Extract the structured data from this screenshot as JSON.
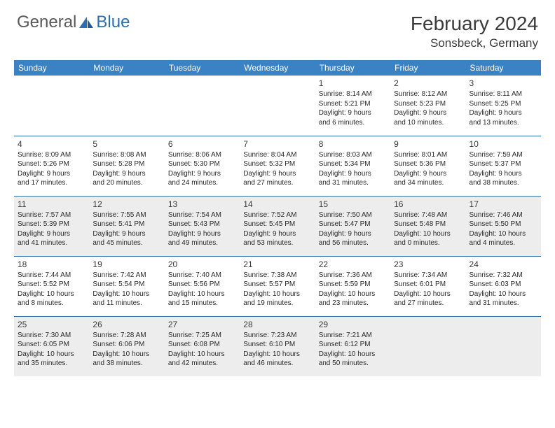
{
  "logo": {
    "general": "General",
    "blue": "Blue"
  },
  "title": "February 2024",
  "location": "Sonsbeck, Germany",
  "colors": {
    "header_bg": "#3b82c4",
    "header_text": "#ffffff",
    "cell_border": "#2b6fb0",
    "shaded_bg": "#ededed",
    "logo_gray": "#5a5a5a",
    "logo_blue": "#2b6fb0"
  },
  "weekdays": [
    "Sunday",
    "Monday",
    "Tuesday",
    "Wednesday",
    "Thursday",
    "Friday",
    "Saturday"
  ],
  "weeks": [
    [
      null,
      null,
      null,
      null,
      {
        "n": "1",
        "sr": "Sunrise: 8:14 AM",
        "ss": "Sunset: 5:21 PM",
        "d1": "Daylight: 9 hours",
        "d2": "and 6 minutes."
      },
      {
        "n": "2",
        "sr": "Sunrise: 8:12 AM",
        "ss": "Sunset: 5:23 PM",
        "d1": "Daylight: 9 hours",
        "d2": "and 10 minutes."
      },
      {
        "n": "3",
        "sr": "Sunrise: 8:11 AM",
        "ss": "Sunset: 5:25 PM",
        "d1": "Daylight: 9 hours",
        "d2": "and 13 minutes."
      }
    ],
    [
      {
        "n": "4",
        "sr": "Sunrise: 8:09 AM",
        "ss": "Sunset: 5:26 PM",
        "d1": "Daylight: 9 hours",
        "d2": "and 17 minutes."
      },
      {
        "n": "5",
        "sr": "Sunrise: 8:08 AM",
        "ss": "Sunset: 5:28 PM",
        "d1": "Daylight: 9 hours",
        "d2": "and 20 minutes."
      },
      {
        "n": "6",
        "sr": "Sunrise: 8:06 AM",
        "ss": "Sunset: 5:30 PM",
        "d1": "Daylight: 9 hours",
        "d2": "and 24 minutes."
      },
      {
        "n": "7",
        "sr": "Sunrise: 8:04 AM",
        "ss": "Sunset: 5:32 PM",
        "d1": "Daylight: 9 hours",
        "d2": "and 27 minutes."
      },
      {
        "n": "8",
        "sr": "Sunrise: 8:03 AM",
        "ss": "Sunset: 5:34 PM",
        "d1": "Daylight: 9 hours",
        "d2": "and 31 minutes."
      },
      {
        "n": "9",
        "sr": "Sunrise: 8:01 AM",
        "ss": "Sunset: 5:36 PM",
        "d1": "Daylight: 9 hours",
        "d2": "and 34 minutes."
      },
      {
        "n": "10",
        "sr": "Sunrise: 7:59 AM",
        "ss": "Sunset: 5:37 PM",
        "d1": "Daylight: 9 hours",
        "d2": "and 38 minutes."
      }
    ],
    [
      {
        "n": "11",
        "sr": "Sunrise: 7:57 AM",
        "ss": "Sunset: 5:39 PM",
        "d1": "Daylight: 9 hours",
        "d2": "and 41 minutes."
      },
      {
        "n": "12",
        "sr": "Sunrise: 7:55 AM",
        "ss": "Sunset: 5:41 PM",
        "d1": "Daylight: 9 hours",
        "d2": "and 45 minutes."
      },
      {
        "n": "13",
        "sr": "Sunrise: 7:54 AM",
        "ss": "Sunset: 5:43 PM",
        "d1": "Daylight: 9 hours",
        "d2": "and 49 minutes."
      },
      {
        "n": "14",
        "sr": "Sunrise: 7:52 AM",
        "ss": "Sunset: 5:45 PM",
        "d1": "Daylight: 9 hours",
        "d2": "and 53 minutes."
      },
      {
        "n": "15",
        "sr": "Sunrise: 7:50 AM",
        "ss": "Sunset: 5:47 PM",
        "d1": "Daylight: 9 hours",
        "d2": "and 56 minutes."
      },
      {
        "n": "16",
        "sr": "Sunrise: 7:48 AM",
        "ss": "Sunset: 5:48 PM",
        "d1": "Daylight: 10 hours",
        "d2": "and 0 minutes."
      },
      {
        "n": "17",
        "sr": "Sunrise: 7:46 AM",
        "ss": "Sunset: 5:50 PM",
        "d1": "Daylight: 10 hours",
        "d2": "and 4 minutes."
      }
    ],
    [
      {
        "n": "18",
        "sr": "Sunrise: 7:44 AM",
        "ss": "Sunset: 5:52 PM",
        "d1": "Daylight: 10 hours",
        "d2": "and 8 minutes."
      },
      {
        "n": "19",
        "sr": "Sunrise: 7:42 AM",
        "ss": "Sunset: 5:54 PM",
        "d1": "Daylight: 10 hours",
        "d2": "and 11 minutes."
      },
      {
        "n": "20",
        "sr": "Sunrise: 7:40 AM",
        "ss": "Sunset: 5:56 PM",
        "d1": "Daylight: 10 hours",
        "d2": "and 15 minutes."
      },
      {
        "n": "21",
        "sr": "Sunrise: 7:38 AM",
        "ss": "Sunset: 5:57 PM",
        "d1": "Daylight: 10 hours",
        "d2": "and 19 minutes."
      },
      {
        "n": "22",
        "sr": "Sunrise: 7:36 AM",
        "ss": "Sunset: 5:59 PM",
        "d1": "Daylight: 10 hours",
        "d2": "and 23 minutes."
      },
      {
        "n": "23",
        "sr": "Sunrise: 7:34 AM",
        "ss": "Sunset: 6:01 PM",
        "d1": "Daylight: 10 hours",
        "d2": "and 27 minutes."
      },
      {
        "n": "24",
        "sr": "Sunrise: 7:32 AM",
        "ss": "Sunset: 6:03 PM",
        "d1": "Daylight: 10 hours",
        "d2": "and 31 minutes."
      }
    ],
    [
      {
        "n": "25",
        "sr": "Sunrise: 7:30 AM",
        "ss": "Sunset: 6:05 PM",
        "d1": "Daylight: 10 hours",
        "d2": "and 35 minutes."
      },
      {
        "n": "26",
        "sr": "Sunrise: 7:28 AM",
        "ss": "Sunset: 6:06 PM",
        "d1": "Daylight: 10 hours",
        "d2": "and 38 minutes."
      },
      {
        "n": "27",
        "sr": "Sunrise: 7:25 AM",
        "ss": "Sunset: 6:08 PM",
        "d1": "Daylight: 10 hours",
        "d2": "and 42 minutes."
      },
      {
        "n": "28",
        "sr": "Sunrise: 7:23 AM",
        "ss": "Sunset: 6:10 PM",
        "d1": "Daylight: 10 hours",
        "d2": "and 46 minutes."
      },
      {
        "n": "29",
        "sr": "Sunrise: 7:21 AM",
        "ss": "Sunset: 6:12 PM",
        "d1": "Daylight: 10 hours",
        "d2": "and 50 minutes."
      },
      null,
      null
    ]
  ],
  "shaded_rows": [
    2,
    4
  ]
}
